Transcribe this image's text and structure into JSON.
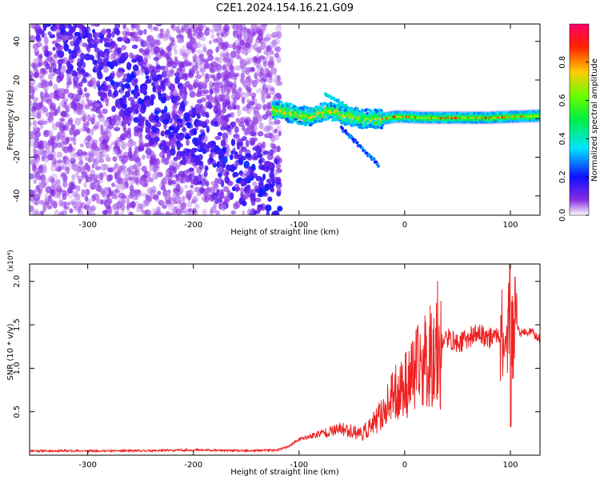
{
  "title": "C2E1.2024.154.16.21.G09",
  "chart_data": [
    {
      "type": "heatmap",
      "xlabel": "Height of straight line (km)",
      "ylabel": "Frequency (Hz)",
      "xlim": [
        -355,
        128
      ],
      "ylim": [
        -50,
        49
      ],
      "xticks": [
        -300,
        -200,
        -100,
        0,
        100
      ],
      "xtick_labels": [
        "-300",
        "-200",
        "-100",
        "0",
        "100"
      ],
      "yticks": [
        -40,
        -20,
        0,
        20,
        40
      ],
      "ytick_labels": [
        "-40",
        "-20",
        "0",
        "20",
        "40"
      ],
      "noise_region_x": [
        -355,
        -118
      ],
      "signal_ridge": {
        "x": [
          -125,
          -110,
          -100,
          -90,
          -80,
          -70,
          -60,
          -50,
          -40,
          -30,
          -20,
          -10,
          0,
          20,
          50,
          80,
          100,
          128
        ],
        "y": [
          5,
          3,
          2,
          1,
          3,
          4,
          2,
          1,
          0,
          0,
          0,
          1,
          1,
          0.5,
          0.5,
          0.5,
          1,
          1.5
        ]
      },
      "branch_up": {
        "x": [
          -75,
          -60,
          -50,
          -40
        ],
        "y": [
          13,
          8,
          4,
          2
        ]
      },
      "branch_down": {
        "x": [
          -60,
          -50,
          -40,
          -30,
          -25
        ],
        "y": [
          -5,
          -10,
          -16,
          -21,
          -24
        ]
      },
      "colorbar": {
        "label": "Normalized spectral amplitude",
        "range": [
          0,
          1
        ],
        "ticks": [
          0.0,
          0.2,
          0.4,
          0.6,
          0.8
        ],
        "tick_labels": [
          "0.0",
          "0.2",
          "0.4",
          "0.6",
          "0.8"
        ]
      },
      "grid": false
    },
    {
      "type": "line",
      "xlabel": "Height of straight line (km)",
      "ylabel": "SNR (10 * v/v)",
      "y_multiplier": "(x10⁴)",
      "xlim": [
        -355,
        128
      ],
      "ylim": [
        0,
        2.2
      ],
      "xticks": [
        -300,
        -200,
        -100,
        0,
        100
      ],
      "xtick_labels": [
        "-300",
        "-200",
        "-100",
        "0",
        "100"
      ],
      "yticks": [
        0.5,
        1.0,
        1.5,
        2.0
      ],
      "ytick_labels": [
        "0.5",
        "1.0",
        "1.5",
        "2.0"
      ],
      "series": [
        {
          "color": "#ee2222",
          "x": [
            -355,
            -300,
            -250,
            -200,
            -150,
            -120,
            -110,
            -100,
            -80,
            -60,
            -40,
            -30,
            -20,
            -10,
            0,
            10,
            20,
            30,
            40,
            50,
            60,
            70,
            80,
            90,
            95,
            100,
            103,
            105,
            110,
            120,
            128
          ],
          "y": [
            0.05,
            0.05,
            0.05,
            0.06,
            0.05,
            0.06,
            0.1,
            0.18,
            0.25,
            0.3,
            0.25,
            0.35,
            0.5,
            0.7,
            0.8,
            0.95,
            1.1,
            1.25,
            1.35,
            1.28,
            1.35,
            1.4,
            1.35,
            1.4,
            1.3,
            1.6,
            1.35,
            1.5,
            1.4,
            1.42,
            1.33
          ]
        }
      ],
      "grid": false
    }
  ]
}
